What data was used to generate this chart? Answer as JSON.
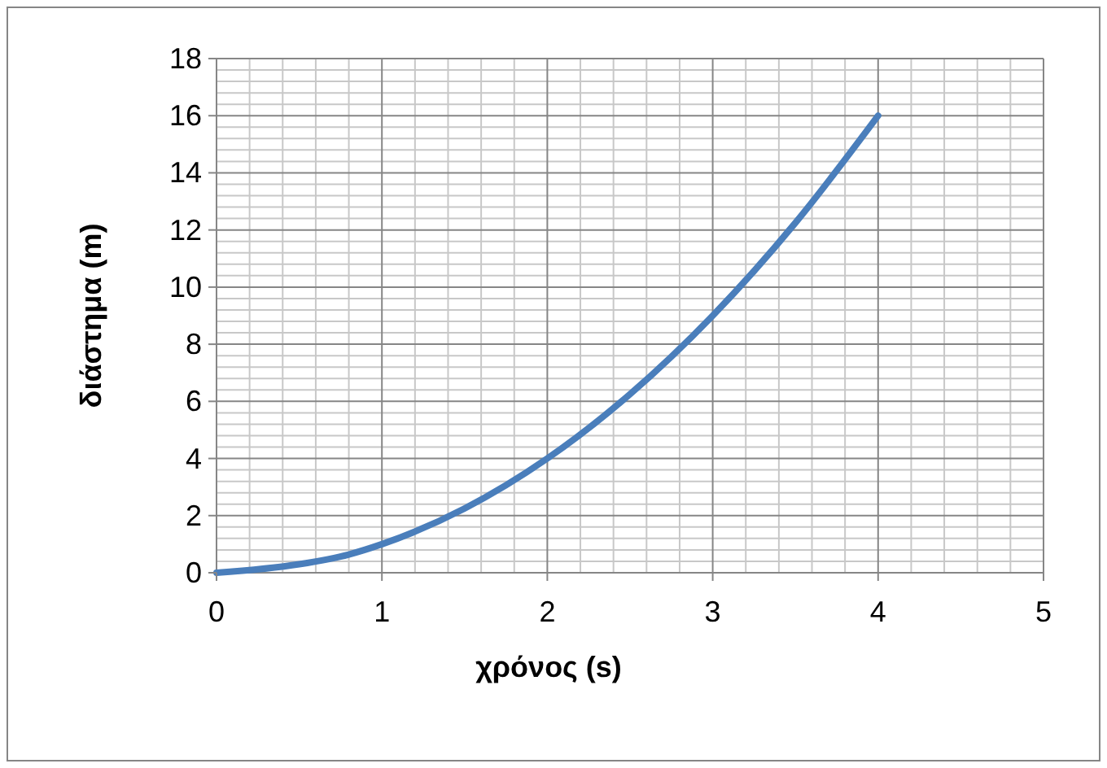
{
  "chart_data": {
    "type": "line",
    "xlabel": "χρόνος (s)",
    "ylabel": "διάστημα (m)",
    "x": [
      0,
      0.5,
      0.8,
      1,
      1.5,
      2,
      2.5,
      3,
      3.5,
      4
    ],
    "series": [
      {
        "color": "#4a7ebb",
        "values": [
          0,
          0.3,
          0.64,
          1,
          2.25,
          4,
          6.25,
          9,
          12.25,
          16
        ]
      }
    ],
    "xlim": [
      0,
      5
    ],
    "xticks": [
      0,
      1,
      2,
      3,
      4,
      5
    ],
    "ylim": [
      0,
      18
    ],
    "yticks": [
      0,
      2,
      4,
      6,
      8,
      10,
      12,
      14,
      16,
      18
    ],
    "grid": true,
    "marker": "none",
    "line_style": "solid"
  }
}
